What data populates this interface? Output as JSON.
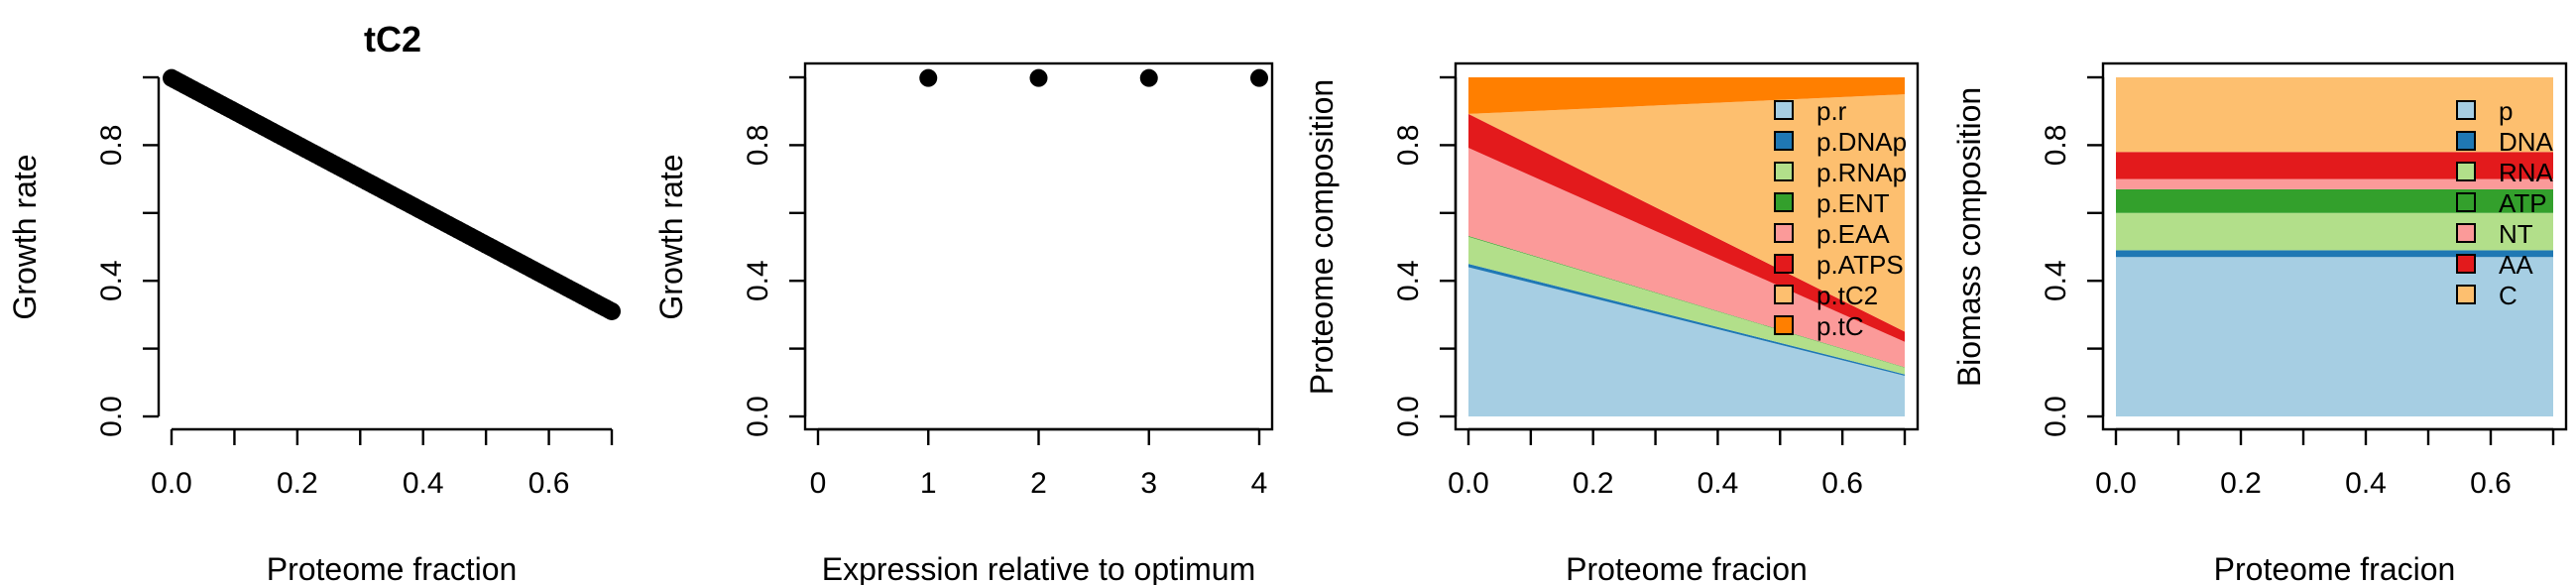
{
  "chart_data": [
    {
      "type": "scatter",
      "title": "tC2",
      "xlabel": "Proteome fraction",
      "ylabel": "Growth rate",
      "xlim": [
        0,
        0.7
      ],
      "ylim": [
        0,
        1.0
      ],
      "xticks": [
        0.0,
        0.1,
        0.2,
        0.3,
        0.4,
        0.5,
        0.6,
        0.7
      ],
      "xtick_labels": [
        "0.0",
        "",
        "0.2",
        "",
        "0.4",
        "",
        "0.6",
        ""
      ],
      "yticks": [
        0.0,
        0.2,
        0.4,
        0.6,
        0.8,
        1.0
      ],
      "ytick_labels": [
        "0.0",
        "",
        "0.4",
        "",
        "0.8",
        ""
      ],
      "x": [
        0.0,
        0.7
      ],
      "y": [
        0.998,
        0.31
      ],
      "point_color": "#000000"
    },
    {
      "type": "scatter",
      "title": "",
      "xlabel": "Expression relative to optimum",
      "ylabel": "Growth rate",
      "xlim": [
        0,
        4
      ],
      "ylim": [
        0,
        1.0
      ],
      "xticks": [
        0,
        1,
        2,
        3,
        4
      ],
      "xtick_labels": [
        "0",
        "1",
        "2",
        "3",
        "4"
      ],
      "yticks": [
        0.0,
        0.2,
        0.4,
        0.6,
        0.8,
        1.0
      ],
      "ytick_labels": [
        "0.0",
        "",
        "0.4",
        "",
        "0.8",
        ""
      ],
      "x": [
        1,
        2,
        3,
        4
      ],
      "y": [
        0.998,
        0.998,
        0.998,
        0.998
      ],
      "point_color": "#000000"
    },
    {
      "type": "area",
      "title": "",
      "xlabel": "Proteome fracion",
      "ylabel": "Proteome composition",
      "xlim": [
        0,
        0.7
      ],
      "ylim": [
        0,
        1.0
      ],
      "xticks": [
        0.0,
        0.1,
        0.2,
        0.3,
        0.4,
        0.5,
        0.6,
        0.7
      ],
      "xtick_labels": [
        "0.0",
        "",
        "0.2",
        "",
        "0.4",
        "",
        "0.6",
        ""
      ],
      "yticks": [
        0.0,
        0.2,
        0.4,
        0.6,
        0.8,
        1.0
      ],
      "ytick_labels": [
        "0.0",
        "",
        "0.4",
        "",
        "0.8",
        ""
      ],
      "x": [
        0.0,
        0.7
      ],
      "legend_position": "top-right",
      "series": [
        {
          "name": "p.r",
          "color": "#A6CEE3",
          "values": [
            0.44,
            0.12
          ]
        },
        {
          "name": "p.DNAp",
          "color": "#1F78B4",
          "values": [
            0.01,
            0.004
          ]
        },
        {
          "name": "p.RNAp",
          "color": "#B2DF8A",
          "values": [
            0.08,
            0.02
          ]
        },
        {
          "name": "p.ENT",
          "color": "#33A02C",
          "values": [
            0.002,
            0.001
          ]
        },
        {
          "name": "p.EAA",
          "color": "#FB9A99",
          "values": [
            0.26,
            0.075
          ]
        },
        {
          "name": "p.ATPS",
          "color": "#E31A1C",
          "values": [
            0.1,
            0.03
          ]
        },
        {
          "name": "p.tC2",
          "color": "#FDBF6F",
          "values": [
            0.0,
            0.7
          ]
        },
        {
          "name": "p.tC",
          "color": "#FF7F00",
          "values": [
            0.108,
            0.05
          ]
        }
      ]
    },
    {
      "type": "area",
      "title": "",
      "xlabel": "Proteome fracion",
      "ylabel": "Biomass composition",
      "xlim": [
        0,
        0.7
      ],
      "ylim": [
        0,
        1.0
      ],
      "xticks": [
        0.0,
        0.1,
        0.2,
        0.3,
        0.4,
        0.5,
        0.6,
        0.7
      ],
      "xtick_labels": [
        "0.0",
        "",
        "0.2",
        "",
        "0.4",
        "",
        "0.6",
        ""
      ],
      "yticks": [
        0.0,
        0.2,
        0.4,
        0.6,
        0.8,
        1.0
      ],
      "ytick_labels": [
        "0.0",
        "",
        "0.4",
        "",
        "0.8",
        ""
      ],
      "x": [
        0.0,
        0.7
      ],
      "legend_position": "top-right",
      "series": [
        {
          "name": "p",
          "color": "#A6CEE3",
          "values": [
            0.47,
            0.47
          ]
        },
        {
          "name": "DNA",
          "color": "#1F78B4",
          "values": [
            0.02,
            0.02
          ]
        },
        {
          "name": "RNA",
          "color": "#B2DF8A",
          "values": [
            0.11,
            0.11
          ]
        },
        {
          "name": "ATP",
          "color": "#33A02C",
          "values": [
            0.07,
            0.07
          ]
        },
        {
          "name": "NT",
          "color": "#FB9A99",
          "values": [
            0.03,
            0.03
          ]
        },
        {
          "name": "AA",
          "color": "#E31A1C",
          "values": [
            0.08,
            0.08
          ]
        },
        {
          "name": "C",
          "color": "#FDBF6F",
          "values": [
            0.22,
            0.22
          ]
        }
      ]
    }
  ]
}
